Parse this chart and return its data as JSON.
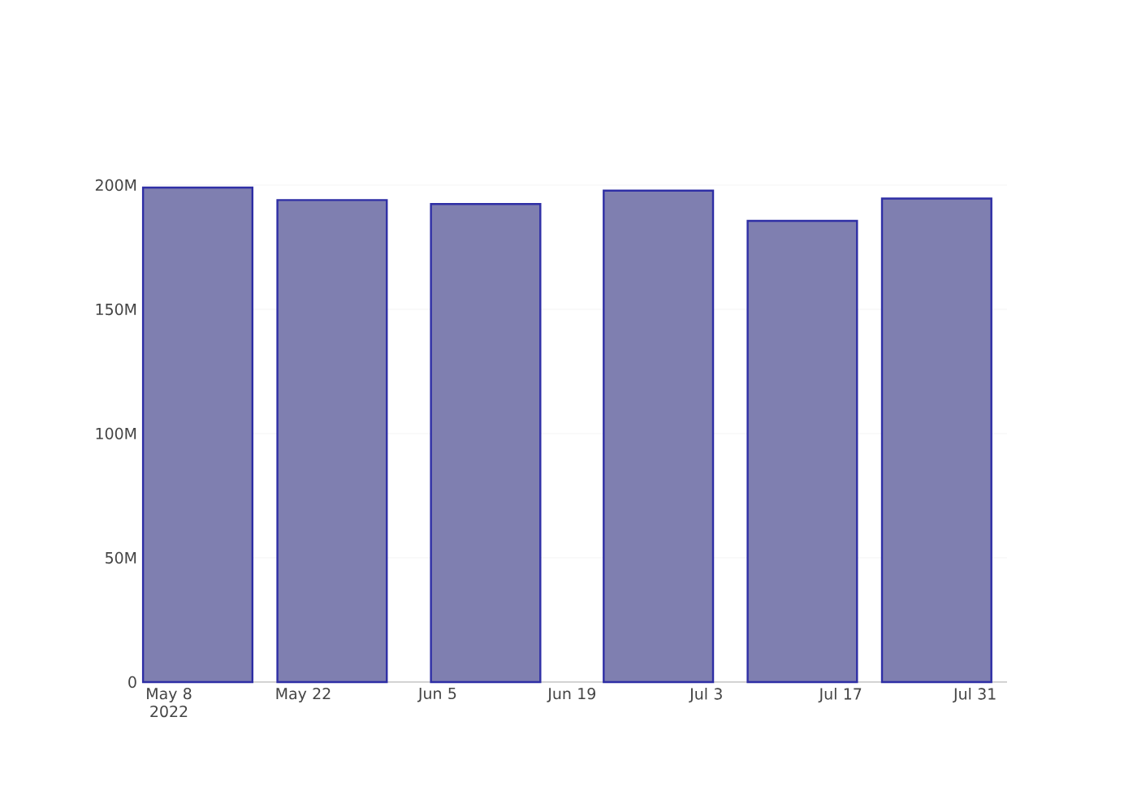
{
  "chart_data": {
    "type": "bar",
    "x": [
      "2022-05-11",
      "2022-05-25",
      "2022-06-10",
      "2022-06-28",
      "2022-07-13",
      "2022-07-27"
    ],
    "values": [
      199000000,
      194000000,
      192400000,
      197800000,
      185600000,
      194600000
    ],
    "color": "#7f7fb0",
    "xlim": [
      "2022-05-05T07:00",
      "2022-08-03T08:00"
    ],
    "xticks": [
      {
        "value": "2022-05-08",
        "label": "May 8 2022"
      },
      {
        "value": "2022-05-22",
        "label": "May 22"
      },
      {
        "value": "2022-06-05",
        "label": "Jun 5"
      },
      {
        "value": "2022-06-19",
        "label": "Jun 19"
      },
      {
        "value": "2022-07-03",
        "label": "Jul 3"
      },
      {
        "value": "2022-07-17",
        "label": "Jul 17"
      },
      {
        "value": "2022-07-31",
        "label": "Jul 31"
      }
    ],
    "ylim": [
      0,
      200000000
    ],
    "yticks": [
      {
        "value": 0,
        "label": "0"
      },
      {
        "value": 50000000,
        "label": "50M"
      },
      {
        "value": 100000000,
        "label": "100M"
      },
      {
        "value": 150000000,
        "label": "150M"
      },
      {
        "value": 200000000,
        "label": "200M"
      }
    ],
    "grid": "y"
  }
}
